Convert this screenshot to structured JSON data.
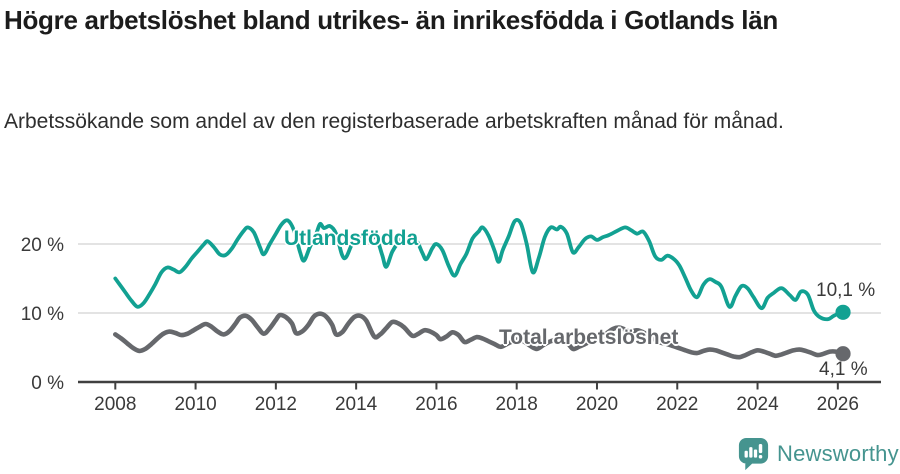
{
  "header": {
    "title": "Högre arbetslöshet bland utrikes- än inrikesfödda i Gotlands län",
    "subtitle": "Arbetssökande som andel av den registerbaserade arbetskraften månad för månad."
  },
  "footer": {
    "brand": "Newsworthy",
    "brand_color": "#45948f",
    "icon": "newsworthy-chart-bubble-icon"
  },
  "colors": {
    "accent_teal": "#12a192",
    "line_gray": "#66686c",
    "grid": "#dadada",
    "axis": "#404040",
    "tick_label": "#3a3a3a",
    "title_text": "#1c1c1c"
  },
  "chart_data": {
    "type": "line",
    "title": "Högre arbetslöshet bland utrikes- än inrikesfödda i Gotlands län",
    "subtitle": "Arbetssökande som andel av den registerbaserade arbetskraften månad för månad.",
    "unit": "%",
    "x_axis": {
      "tick_values": [
        2008,
        2010,
        2012,
        2014,
        2016,
        2018,
        2020,
        2022,
        2024,
        2026
      ],
      "tick_labels": [
        "2008",
        "2010",
        "2012",
        "2014",
        "2016",
        "2018",
        "2020",
        "2022",
        "2024",
        "2026"
      ],
      "range": [
        2007.1,
        2026.6
      ],
      "gridlines": false
    },
    "y_axis": {
      "tick_values": [
        0,
        10,
        20
      ],
      "tick_labels": [
        "0 %",
        "10 %",
        "20 %"
      ],
      "range": [
        0,
        25.6
      ],
      "gridlines": true
    },
    "legend_position": "inline-labels",
    "series": [
      {
        "name": "Utlandsfödda",
        "color": "#12a192",
        "end_label": "10,1 %",
        "end_value": 10.1,
        "points": [
          [
            2008.0,
            15.0
          ],
          [
            2008.1,
            14.2
          ],
          [
            2008.25,
            13.0
          ],
          [
            2008.4,
            11.8
          ],
          [
            2008.55,
            10.9
          ],
          [
            2008.7,
            11.4
          ],
          [
            2008.85,
            12.7
          ],
          [
            2009.0,
            14.2
          ],
          [
            2009.15,
            15.9
          ],
          [
            2009.3,
            16.6
          ],
          [
            2009.45,
            16.3
          ],
          [
            2009.6,
            15.9
          ],
          [
            2009.75,
            16.7
          ],
          [
            2009.9,
            17.9
          ],
          [
            2010.05,
            18.9
          ],
          [
            2010.2,
            19.9
          ],
          [
            2010.3,
            20.4
          ],
          [
            2010.45,
            19.6
          ],
          [
            2010.6,
            18.5
          ],
          [
            2010.75,
            18.4
          ],
          [
            2010.9,
            19.3
          ],
          [
            2011.05,
            20.7
          ],
          [
            2011.2,
            21.9
          ],
          [
            2011.3,
            22.4
          ],
          [
            2011.45,
            21.7
          ],
          [
            2011.6,
            19.6
          ],
          [
            2011.7,
            18.5
          ],
          [
            2011.85,
            20.0
          ],
          [
            2012.0,
            21.5
          ],
          [
            2012.15,
            22.9
          ],
          [
            2012.3,
            23.4
          ],
          [
            2012.45,
            22.0
          ],
          [
            2012.6,
            18.9
          ],
          [
            2012.7,
            17.6
          ],
          [
            2012.85,
            19.6
          ],
          [
            2013.0,
            21.4
          ],
          [
            2013.1,
            22.9
          ],
          [
            2013.2,
            22.3
          ],
          [
            2013.35,
            22.6
          ],
          [
            2013.5,
            21.5
          ],
          [
            2013.65,
            18.4
          ],
          [
            2013.75,
            18.1
          ],
          [
            2013.9,
            20.0
          ],
          [
            2014.05,
            21.0
          ],
          [
            2014.2,
            21.3
          ],
          [
            2014.35,
            20.7
          ],
          [
            2014.5,
            20.9
          ],
          [
            2014.65,
            18.4
          ],
          [
            2014.75,
            16.7
          ],
          [
            2014.9,
            18.9
          ],
          [
            2015.05,
            20.2
          ],
          [
            2015.2,
            21.0
          ],
          [
            2015.35,
            20.2
          ],
          [
            2015.5,
            20.5
          ],
          [
            2015.65,
            18.7
          ],
          [
            2015.75,
            17.8
          ],
          [
            2015.9,
            19.4
          ],
          [
            2016.0,
            20.0
          ],
          [
            2016.15,
            19.1
          ],
          [
            2016.3,
            16.9
          ],
          [
            2016.45,
            15.4
          ],
          [
            2016.6,
            17.1
          ],
          [
            2016.75,
            18.6
          ],
          [
            2016.9,
            20.8
          ],
          [
            2017.05,
            21.8
          ],
          [
            2017.15,
            22.4
          ],
          [
            2017.3,
            21.2
          ],
          [
            2017.45,
            19.0
          ],
          [
            2017.55,
            17.4
          ],
          [
            2017.65,
            19.1
          ],
          [
            2017.8,
            21.1
          ],
          [
            2017.95,
            23.3
          ],
          [
            2018.1,
            23.0
          ],
          [
            2018.25,
            20.0
          ],
          [
            2018.4,
            15.9
          ],
          [
            2018.55,
            18.0
          ],
          [
            2018.7,
            21.0
          ],
          [
            2018.85,
            22.4
          ],
          [
            2019.0,
            22.1
          ],
          [
            2019.1,
            22.5
          ],
          [
            2019.25,
            21.5
          ],
          [
            2019.4,
            18.8
          ],
          [
            2019.55,
            19.6
          ],
          [
            2019.7,
            20.7
          ],
          [
            2019.85,
            21.1
          ],
          [
            2020.0,
            20.6
          ],
          [
            2020.15,
            21.0
          ],
          [
            2020.3,
            21.3
          ],
          [
            2020.5,
            21.9
          ],
          [
            2020.7,
            22.4
          ],
          [
            2020.85,
            22.0
          ],
          [
            2021.0,
            21.5
          ],
          [
            2021.15,
            21.8
          ],
          [
            2021.3,
            20.4
          ],
          [
            2021.45,
            18.2
          ],
          [
            2021.6,
            17.7
          ],
          [
            2021.75,
            18.3
          ],
          [
            2021.9,
            17.9
          ],
          [
            2022.05,
            16.9
          ],
          [
            2022.2,
            15.1
          ],
          [
            2022.35,
            13.2
          ],
          [
            2022.5,
            12.3
          ],
          [
            2022.65,
            14.1
          ],
          [
            2022.8,
            14.9
          ],
          [
            2022.95,
            14.5
          ],
          [
            2023.1,
            13.8
          ],
          [
            2023.3,
            10.9
          ],
          [
            2023.45,
            12.5
          ],
          [
            2023.6,
            13.9
          ],
          [
            2023.75,
            13.6
          ],
          [
            2023.9,
            12.3
          ],
          [
            2024.1,
            10.7
          ],
          [
            2024.25,
            12.2
          ],
          [
            2024.4,
            12.9
          ],
          [
            2024.6,
            13.6
          ],
          [
            2024.8,
            12.6
          ],
          [
            2024.95,
            11.9
          ],
          [
            2025.08,
            13.1
          ],
          [
            2025.25,
            12.7
          ],
          [
            2025.4,
            10.4
          ],
          [
            2025.55,
            9.4
          ],
          [
            2025.75,
            9.1
          ],
          [
            2025.9,
            9.6
          ],
          [
            2026.08,
            10.1
          ]
        ]
      },
      {
        "name": "Total arbetslöshet",
        "color": "#66686c",
        "end_label": "4,1 %",
        "end_value": 4.1,
        "points": [
          [
            2008.0,
            6.9
          ],
          [
            2008.15,
            6.3
          ],
          [
            2008.3,
            5.6
          ],
          [
            2008.45,
            4.9
          ],
          [
            2008.6,
            4.5
          ],
          [
            2008.75,
            4.8
          ],
          [
            2008.9,
            5.5
          ],
          [
            2009.05,
            6.3
          ],
          [
            2009.2,
            7.0
          ],
          [
            2009.35,
            7.3
          ],
          [
            2009.5,
            7.1
          ],
          [
            2009.65,
            6.8
          ],
          [
            2009.8,
            7.0
          ],
          [
            2009.95,
            7.5
          ],
          [
            2010.1,
            8.0
          ],
          [
            2010.25,
            8.4
          ],
          [
            2010.4,
            8.0
          ],
          [
            2010.55,
            7.3
          ],
          [
            2010.7,
            6.9
          ],
          [
            2010.85,
            7.4
          ],
          [
            2011.0,
            8.5
          ],
          [
            2011.1,
            9.3
          ],
          [
            2011.25,
            9.6
          ],
          [
            2011.4,
            9.0
          ],
          [
            2011.55,
            7.9
          ],
          [
            2011.7,
            7.0
          ],
          [
            2011.85,
            7.8
          ],
          [
            2012.0,
            9.0
          ],
          [
            2012.1,
            9.7
          ],
          [
            2012.25,
            9.4
          ],
          [
            2012.4,
            8.5
          ],
          [
            2012.5,
            7.1
          ],
          [
            2012.65,
            7.3
          ],
          [
            2012.8,
            8.2
          ],
          [
            2012.95,
            9.5
          ],
          [
            2013.1,
            9.9
          ],
          [
            2013.25,
            9.5
          ],
          [
            2013.4,
            8.3
          ],
          [
            2013.5,
            6.9
          ],
          [
            2013.65,
            7.2
          ],
          [
            2013.8,
            8.4
          ],
          [
            2013.95,
            9.4
          ],
          [
            2014.1,
            9.6
          ],
          [
            2014.25,
            8.9
          ],
          [
            2014.45,
            6.6
          ],
          [
            2014.6,
            6.9
          ],
          [
            2014.75,
            7.8
          ],
          [
            2014.9,
            8.7
          ],
          [
            2015.05,
            8.5
          ],
          [
            2015.2,
            7.9
          ],
          [
            2015.4,
            6.7
          ],
          [
            2015.55,
            7.0
          ],
          [
            2015.7,
            7.5
          ],
          [
            2015.85,
            7.3
          ],
          [
            2016.0,
            6.8
          ],
          [
            2016.1,
            6.2
          ],
          [
            2016.25,
            6.6
          ],
          [
            2016.4,
            7.2
          ],
          [
            2016.55,
            6.8
          ],
          [
            2016.7,
            5.8
          ],
          [
            2016.85,
            6.1
          ],
          [
            2017.0,
            6.5
          ],
          [
            2017.15,
            6.3
          ],
          [
            2017.3,
            5.9
          ],
          [
            2017.45,
            5.5
          ],
          [
            2017.6,
            5.1
          ],
          [
            2017.75,
            5.5
          ],
          [
            2017.9,
            5.9
          ],
          [
            2018.05,
            6.2
          ],
          [
            2018.2,
            5.8
          ],
          [
            2018.35,
            5.2
          ],
          [
            2018.5,
            4.8
          ],
          [
            2018.65,
            5.3
          ],
          [
            2018.8,
            5.8
          ],
          [
            2018.95,
            6.1
          ],
          [
            2019.1,
            6.3
          ],
          [
            2019.25,
            5.8
          ],
          [
            2019.4,
            4.8
          ],
          [
            2019.55,
            5.1
          ],
          [
            2019.7,
            5.5
          ],
          [
            2019.85,
            5.9
          ],
          [
            2020.0,
            6.2
          ],
          [
            2020.2,
            6.9
          ],
          [
            2020.4,
            7.7
          ],
          [
            2020.55,
            7.9
          ],
          [
            2020.7,
            7.6
          ],
          [
            2020.85,
            7.3
          ],
          [
            2021.0,
            7.5
          ],
          [
            2021.15,
            7.2
          ],
          [
            2021.3,
            6.7
          ],
          [
            2021.45,
            6.1
          ],
          [
            2021.6,
            5.7
          ],
          [
            2021.75,
            5.5
          ],
          [
            2021.9,
            5.2
          ],
          [
            2022.05,
            4.9
          ],
          [
            2022.2,
            4.6
          ],
          [
            2022.35,
            4.3
          ],
          [
            2022.5,
            4.2
          ],
          [
            2022.65,
            4.5
          ],
          [
            2022.8,
            4.7
          ],
          [
            2022.95,
            4.6
          ],
          [
            2023.1,
            4.3
          ],
          [
            2023.25,
            4.0
          ],
          [
            2023.4,
            3.7
          ],
          [
            2023.55,
            3.6
          ],
          [
            2023.7,
            3.9
          ],
          [
            2023.85,
            4.3
          ],
          [
            2024.0,
            4.6
          ],
          [
            2024.15,
            4.4
          ],
          [
            2024.3,
            4.1
          ],
          [
            2024.45,
            3.8
          ],
          [
            2024.6,
            4.0
          ],
          [
            2024.75,
            4.3
          ],
          [
            2024.9,
            4.6
          ],
          [
            2025.05,
            4.7
          ],
          [
            2025.2,
            4.5
          ],
          [
            2025.35,
            4.2
          ],
          [
            2025.5,
            3.9
          ],
          [
            2025.65,
            4.1
          ],
          [
            2025.8,
            4.4
          ],
          [
            2025.95,
            4.4
          ],
          [
            2026.08,
            4.1
          ]
        ]
      }
    ]
  }
}
